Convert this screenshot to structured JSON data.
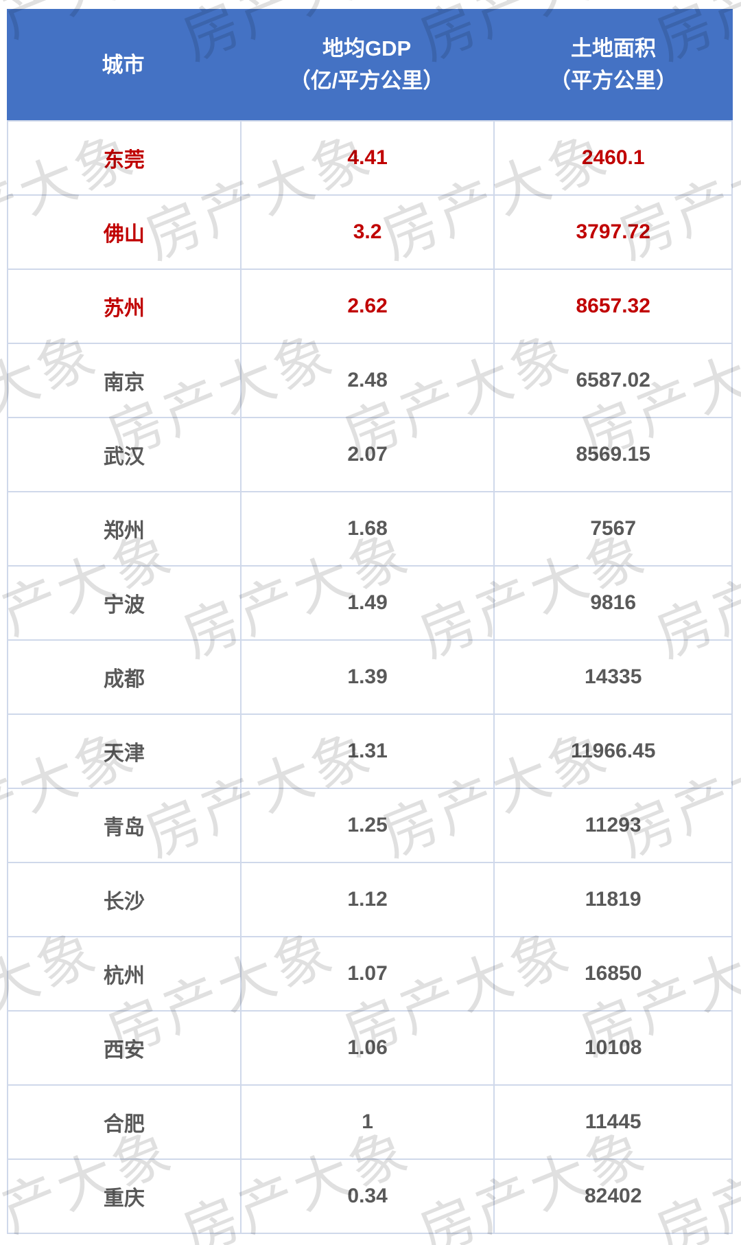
{
  "colors": {
    "header_bg": "#4472C4",
    "header_text": "#FFFFFF",
    "highlight_text": "#C00000",
    "body_text": "#595959",
    "border": "#CFD8EA",
    "watermark_text": "rgba(0,0,0,0.12)"
  },
  "watermark": {
    "text": "房产大象"
  },
  "table": {
    "columns": [
      {
        "id": "city",
        "label_lines": [
          "城市"
        ]
      },
      {
        "id": "gdp",
        "label_lines": [
          "地均GDP",
          "（亿/平方公里）"
        ]
      },
      {
        "id": "area",
        "label_lines": [
          "土地面积",
          "（平方公里）"
        ]
      }
    ],
    "rows": [
      {
        "city": "东莞",
        "gdp": "4.41",
        "area": "2460.1",
        "highlight": true
      },
      {
        "city": "佛山",
        "gdp": "3.2",
        "area": "3797.72",
        "highlight": true
      },
      {
        "city": "苏州",
        "gdp": "2.62",
        "area": "8657.32",
        "highlight": true
      },
      {
        "city": "南京",
        "gdp": "2.48",
        "area": "6587.02",
        "highlight": false
      },
      {
        "city": "武汉",
        "gdp": "2.07",
        "area": "8569.15",
        "highlight": false
      },
      {
        "city": "郑州",
        "gdp": "1.68",
        "area": "7567",
        "highlight": false
      },
      {
        "city": "宁波",
        "gdp": "1.49",
        "area": "9816",
        "highlight": false
      },
      {
        "city": "成都",
        "gdp": "1.39",
        "area": "14335",
        "highlight": false
      },
      {
        "city": "天津",
        "gdp": "1.31",
        "area": "11966.45",
        "highlight": false
      },
      {
        "city": "青岛",
        "gdp": "1.25",
        "area": "11293",
        "highlight": false
      },
      {
        "city": "长沙",
        "gdp": "1.12",
        "area": "11819",
        "highlight": false
      },
      {
        "city": "杭州",
        "gdp": "1.07",
        "area": "16850",
        "highlight": false
      },
      {
        "city": "西安",
        "gdp": "1.06",
        "area": "10108",
        "highlight": false
      },
      {
        "city": "合肥",
        "gdp": "1",
        "area": "11445",
        "highlight": false
      },
      {
        "city": "重庆",
        "gdp": "0.34",
        "area": "82402",
        "highlight": false
      }
    ]
  },
  "chart_data": {
    "type": "table",
    "columns": [
      "城市",
      "地均GDP（亿/平方公里）",
      "土地面积（平方公里）"
    ],
    "rows": [
      [
        "东莞",
        4.41,
        2460.1
      ],
      [
        "佛山",
        3.2,
        3797.72
      ],
      [
        "苏州",
        2.62,
        8657.32
      ],
      [
        "南京",
        2.48,
        6587.02
      ],
      [
        "武汉",
        2.07,
        8569.15
      ],
      [
        "郑州",
        1.68,
        7567
      ],
      [
        "宁波",
        1.49,
        9816
      ],
      [
        "成都",
        1.39,
        14335
      ],
      [
        "天津",
        1.31,
        11966.45
      ],
      [
        "青岛",
        1.25,
        11293
      ],
      [
        "长沙",
        1.12,
        11819
      ],
      [
        "杭州",
        1.07,
        16850
      ],
      [
        "西安",
        1.06,
        10108
      ],
      [
        "合肥",
        1,
        11445
      ],
      [
        "重庆",
        0.34,
        82402
      ]
    ],
    "highlighted_rows": [
      "东莞",
      "佛山",
      "苏州"
    ],
    "title": "",
    "legend_position": "none",
    "grid": true
  }
}
